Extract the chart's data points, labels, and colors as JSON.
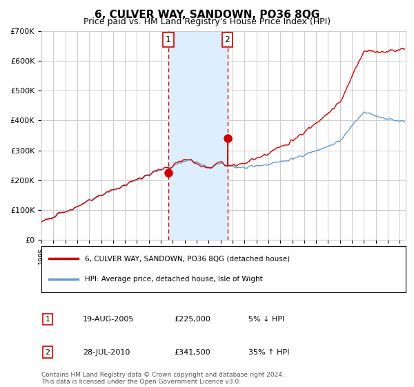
{
  "title": "6, CULVER WAY, SANDOWN, PO36 8QG",
  "subtitle": "Price paid vs. HM Land Registry's House Price Index (HPI)",
  "legend_line1": "6, CULVER WAY, SANDOWN, PO36 8QG (detached house)",
  "legend_line2": "HPI: Average price, detached house, Isle of Wight",
  "table_row1_num": "1",
  "table_row1_date": "19-AUG-2005",
  "table_row1_price": "£225,000",
  "table_row1_hpi": "5% ↓ HPI",
  "table_row2_num": "2",
  "table_row2_date": "28-JUL-2010",
  "table_row2_price": "£341,500",
  "table_row2_hpi": "35% ↑ HPI",
  "footer": "Contains HM Land Registry data © Crown copyright and database right 2024.\nThis data is licensed under the Open Government Licence v3.0.",
  "hpi_color": "#6699cc",
  "price_color": "#cc0000",
  "dot_color": "#cc0000",
  "vline_color": "#cc0000",
  "shade_color": "#ddeeff",
  "grid_color": "#cccccc",
  "background_color": "#ffffff",
  "ylim": [
    0,
    700000
  ],
  "yticks": [
    0,
    100000,
    200000,
    300000,
    400000,
    500000,
    600000,
    700000
  ],
  "ytick_labels": [
    "£0",
    "£100K",
    "£200K",
    "£300K",
    "£400K",
    "£500K",
    "£600K",
    "£700K"
  ],
  "sale1_year": 2005.63,
  "sale1_price": 225000,
  "sale2_year": 2010.57,
  "sale2_price": 341500,
  "xmin": 1995.0,
  "xmax": 2025.5
}
